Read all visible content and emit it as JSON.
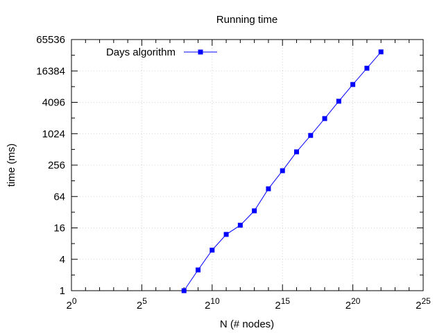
{
  "chart_data": {
    "type": "line",
    "title": "Running time",
    "xlabel": "N (# nodes)",
    "ylabel": "time (ms)",
    "x_scale": "log2",
    "y_scale": "log2",
    "xlim": [
      1,
      33554432
    ],
    "ylim": [
      1,
      65536
    ],
    "x_ticks": [
      {
        "value": 1,
        "base": "2",
        "exp": "0"
      },
      {
        "value": 32,
        "base": "2",
        "exp": "5"
      },
      {
        "value": 1024,
        "base": "2",
        "exp": "10"
      },
      {
        "value": 32768,
        "base": "2",
        "exp": "15"
      },
      {
        "value": 1048576,
        "base": "2",
        "exp": "20"
      },
      {
        "value": 33554432,
        "base": "2",
        "exp": "25"
      }
    ],
    "y_ticks": [
      {
        "value": 1,
        "label": "1"
      },
      {
        "value": 4,
        "label": "4"
      },
      {
        "value": 16,
        "label": "16"
      },
      {
        "value": 64,
        "label": "64"
      },
      {
        "value": 256,
        "label": "256"
      },
      {
        "value": 1024,
        "label": "1024"
      },
      {
        "value": 4096,
        "label": "4096"
      },
      {
        "value": 16384,
        "label": "16384"
      },
      {
        "value": 65536,
        "label": "65536"
      }
    ],
    "grid": true,
    "legend_position": "top-left",
    "series": [
      {
        "name": "Days algorithm",
        "color": "#0000ff",
        "marker": "square",
        "points": [
          {
            "x": 256,
            "y": 1
          },
          {
            "x": 512,
            "y": 2.5
          },
          {
            "x": 1024,
            "y": 6
          },
          {
            "x": 2048,
            "y": 12
          },
          {
            "x": 4096,
            "y": 18
          },
          {
            "x": 8192,
            "y": 34
          },
          {
            "x": 16384,
            "y": 90
          },
          {
            "x": 32768,
            "y": 200
          },
          {
            "x": 65536,
            "y": 460
          },
          {
            "x": 131072,
            "y": 950
          },
          {
            "x": 262144,
            "y": 2000
          },
          {
            "x": 524288,
            "y": 4300
          },
          {
            "x": 1048576,
            "y": 9000
          },
          {
            "x": 2097152,
            "y": 18500
          },
          {
            "x": 4194304,
            "y": 38000
          }
        ]
      }
    ]
  }
}
